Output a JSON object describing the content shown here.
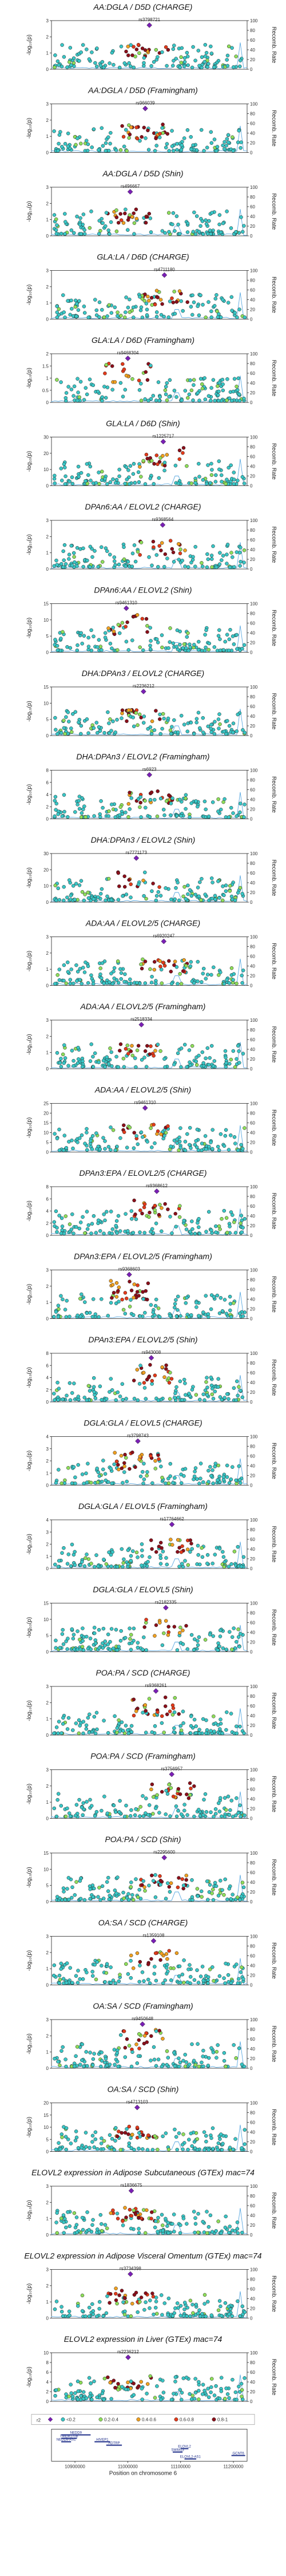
{
  "figure": {
    "ylabel_left": "-log₁₀(p)",
    "ylabel_right": "Recomb. Rate",
    "xlabel": "Position on chromosome 6",
    "x_ticks": [
      "10900000",
      "11000000",
      "11100000",
      "11200000"
    ],
    "legend": {
      "r2_label": "r2",
      "bins": [
        "<0.2",
        "0.2-0.4",
        "0.4-0.6",
        "0.6-0.8",
        "0.8-1"
      ],
      "colors": [
        "#39c6c6",
        "#8ede5a",
        "#f0a020",
        "#e33a1a",
        "#8b0f1a"
      ],
      "lead_color": "#7a1fb5"
    },
    "genes": [
      "NEDD9",
      "TMEM170B",
      "HIVEP1",
      "ADTRP",
      "ELOVL2",
      "SMIM13",
      "GCNT6",
      "ELOVL2-AS1",
      "NEDD9-AS1"
    ]
  },
  "chart_data": [
    {
      "type": "scatter",
      "title": "AA:DGLA / D5D (CHARGE)",
      "lead_snp": "rs3798721",
      "ylim": [
        0,
        3
      ],
      "yticks": [
        0,
        1,
        2,
        3
      ]
    },
    {
      "type": "scatter",
      "title": "AA:DGLA / D5D (Framingham)",
      "lead_snp": "rs966039",
      "ylim": [
        0,
        3
      ],
      "yticks": [
        0,
        1,
        2,
        3
      ]
    },
    {
      "type": "scatter",
      "title": "AA:DGLA / D5D (Shin)",
      "lead_snp": "rs496667",
      "ylim": [
        0,
        3
      ],
      "yticks": [
        0,
        1,
        2,
        3
      ]
    },
    {
      "type": "scatter",
      "title": "GLA:LA / D6D (CHARGE)",
      "lead_snp": "rs4711180",
      "ylim": [
        0,
        3
      ],
      "yticks": [
        0,
        1,
        2,
        3
      ]
    },
    {
      "type": "scatter",
      "title": "GLA:LA / D6D (Framingham)",
      "lead_snp": "rs9468304",
      "ylim": [
        0,
        2
      ],
      "yticks": [
        0,
        0.5,
        1,
        1.5,
        2
      ]
    },
    {
      "type": "scatter",
      "title": "GLA:LA / D6D (Shin)",
      "lead_snp": "rs1225717",
      "ylim": [
        0,
        30
      ],
      "yticks": [
        0,
        10,
        20,
        30
      ]
    },
    {
      "type": "scatter",
      "title": "DPAn6:AA / ELOVL2 (CHARGE)",
      "lead_snp": "rs9368564",
      "ylim": [
        0,
        3
      ],
      "yticks": [
        0,
        1,
        2,
        3
      ]
    },
    {
      "type": "scatter",
      "title": "DPAn6:AA / ELOVL2 (Shin)",
      "lead_snp": "rs9461310",
      "ylim": [
        0,
        15
      ],
      "yticks": [
        0,
        5,
        10,
        15
      ]
    },
    {
      "type": "scatter",
      "title": "DHA:DPAn3 / ELOVL2 (CHARGE)",
      "lead_snp": "rs2236212",
      "ylim": [
        0,
        15
      ],
      "yticks": [
        0,
        5,
        10,
        15
      ]
    },
    {
      "type": "scatter",
      "title": "DHA:DPAn3 / ELOVL2 (Framingham)",
      "lead_snp": "rs6923",
      "ylim": [
        0,
        8
      ],
      "yticks": [
        0,
        2,
        4,
        6,
        8
      ]
    },
    {
      "type": "scatter",
      "title": "DHA:DPAn3 / ELOVL2 (Shin)",
      "lead_snp": "rs7771173",
      "ylim": [
        0,
        30
      ],
      "yticks": [
        0,
        10,
        20,
        30
      ]
    },
    {
      "type": "scatter",
      "title": "ADA:AA / ELOVL2/5 (CHARGE)",
      "lead_snp": "rs6920247",
      "ylim": [
        0,
        3
      ],
      "yticks": [
        0,
        1,
        2,
        3
      ]
    },
    {
      "type": "scatter",
      "title": "ADA:AA / ELOVL2/5 (Framingham)",
      "lead_snp": "rs2518334",
      "ylim": [
        0,
        3
      ],
      "yticks": [
        0,
        1,
        2,
        3
      ]
    },
    {
      "type": "scatter",
      "title": "ADA:AA / ELOVL2/5 (Shin)",
      "lead_snp": "rs9461310",
      "ylim": [
        0,
        25
      ],
      "yticks": [
        0,
        5,
        10,
        15,
        20,
        25
      ]
    },
    {
      "type": "scatter",
      "title": "DPAn3:EPA / ELOVL2/5 (CHARGE)",
      "lead_snp": "rs9368612",
      "ylim": [
        0,
        8
      ],
      "yticks": [
        0,
        2,
        4,
        6,
        8
      ]
    },
    {
      "type": "scatter",
      "title": "DPAn3:EPA / ELOVL2/5 (Framingham)",
      "lead_snp": "rs9368603",
      "ylim": [
        0,
        3
      ],
      "yticks": [
        0,
        1,
        2,
        3
      ]
    },
    {
      "type": "scatter",
      "title": "DPAn3:EPA / ELOVL2/5 (Shin)",
      "lead_snp": "rs943008",
      "ylim": [
        0,
        8
      ],
      "yticks": [
        0,
        2,
        4,
        6,
        8
      ]
    },
    {
      "type": "scatter",
      "title": "DGLA:GLA / ELOVL5 (CHARGE)",
      "lead_snp": "rs3798743",
      "ylim": [
        0,
        4
      ],
      "yticks": [
        0,
        1,
        2,
        3,
        4
      ]
    },
    {
      "type": "scatter",
      "title": "DGLA:GLA / ELOVL5 (Framingham)",
      "lead_snp": "rs17764662",
      "ylim": [
        0,
        4
      ],
      "yticks": [
        0,
        1,
        2,
        3,
        4
      ]
    },
    {
      "type": "scatter",
      "title": "DGLA:GLA / ELOVL5 (Shin)",
      "lead_snp": "rs2182335",
      "ylim": [
        0,
        15
      ],
      "yticks": [
        0,
        5,
        10,
        15
      ]
    },
    {
      "type": "scatter",
      "title": "POA:PA / SCD (CHARGE)",
      "lead_snp": "rs9368261",
      "ylim": [
        0,
        3
      ],
      "yticks": [
        0,
        1,
        2,
        3
      ]
    },
    {
      "type": "scatter",
      "title": "POA:PA / SCD (Framingham)",
      "lead_snp": "rs3756957",
      "ylim": [
        0,
        3
      ],
      "yticks": [
        0,
        1,
        2,
        3
      ]
    },
    {
      "type": "scatter",
      "title": "POA:PA / SCD (Shin)",
      "lead_snp": "rs2295600",
      "ylim": [
        0,
        15
      ],
      "yticks": [
        0,
        5,
        10,
        15
      ]
    },
    {
      "type": "scatter",
      "title": "OA:SA / SCD (CHARGE)",
      "lead_snp": "rs1359108",
      "ylim": [
        0,
        3
      ],
      "yticks": [
        0,
        1,
        2,
        3
      ]
    },
    {
      "type": "scatter",
      "title": "OA:SA / SCD (Framingham)",
      "lead_snp": "rs9450648",
      "ylim": [
        0,
        3
      ],
      "yticks": [
        0,
        1,
        2,
        3
      ]
    },
    {
      "type": "scatter",
      "title": "OA:SA / SCD (Shin)",
      "lead_snp": "rs4713103",
      "ylim": [
        0,
        20
      ],
      "yticks": [
        0,
        5,
        10,
        15,
        20
      ]
    },
    {
      "type": "scatter",
      "title": "ELOVL2 expression in Adipose Subcutaneous (GTEx) mac=74",
      "lead_snp": "rs1836675",
      "ylim": [
        0,
        3
      ],
      "yticks": [
        0,
        1,
        2,
        3
      ]
    },
    {
      "type": "scatter",
      "title": "ELOVL2 expression in Adipose Visceral Omentum (GTEx) mac=74",
      "lead_snp": "rs3734398",
      "ylim": [
        0,
        3
      ],
      "yticks": [
        0,
        1,
        2,
        3
      ]
    },
    {
      "type": "scatter",
      "title": "ELOVL2 expression in Liver (GTEx) mac=74",
      "lead_snp": "rs2236212",
      "ylim": [
        0,
        10
      ],
      "yticks": [
        0,
        2,
        4,
        6,
        8,
        10
      ]
    }
  ]
}
